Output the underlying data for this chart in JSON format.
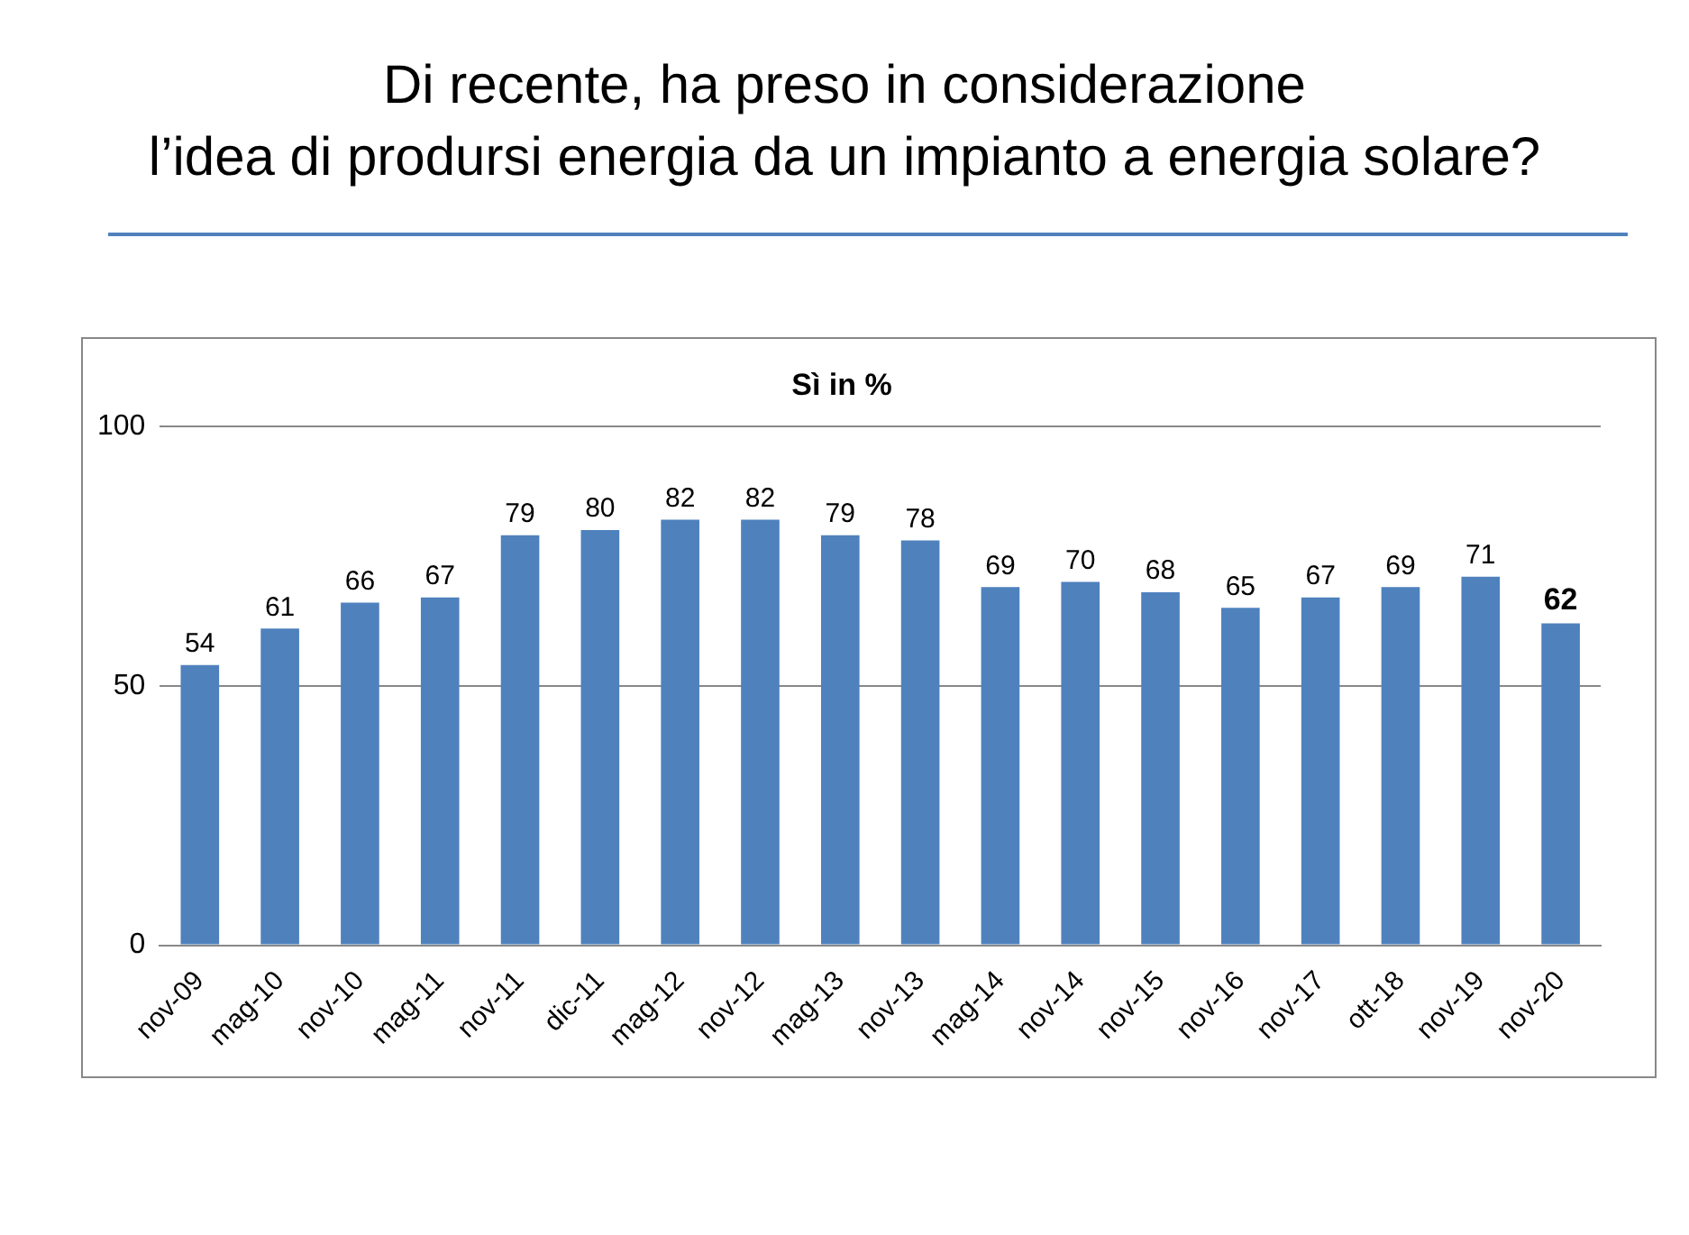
{
  "chart_data": {
    "type": "bar",
    "title": "Di recente, ha preso in considerazione\nl’idea di prodursi energia da un impianto a energia solare?",
    "subtitle": "Sì in %",
    "categories": [
      "nov-09",
      "mag-10",
      "nov-10",
      "mag-11",
      "nov-11",
      "dic-11",
      "mag-12",
      "nov-12",
      "mag-13",
      "nov-13",
      "mag-14",
      "nov-14",
      "nov-15",
      "nov-16",
      "nov-17",
      "ott-18",
      "nov-19",
      "nov-20"
    ],
    "values": [
      54,
      61,
      66,
      67,
      79,
      80,
      82,
      82,
      79,
      78,
      69,
      70,
      68,
      65,
      67,
      69,
      71,
      62
    ],
    "color": "#4f81bd",
    "ylim": [
      0,
      100
    ],
    "yticks": [
      0,
      50,
      100
    ],
    "grid": "y",
    "legend": false,
    "data_labels": true
  }
}
